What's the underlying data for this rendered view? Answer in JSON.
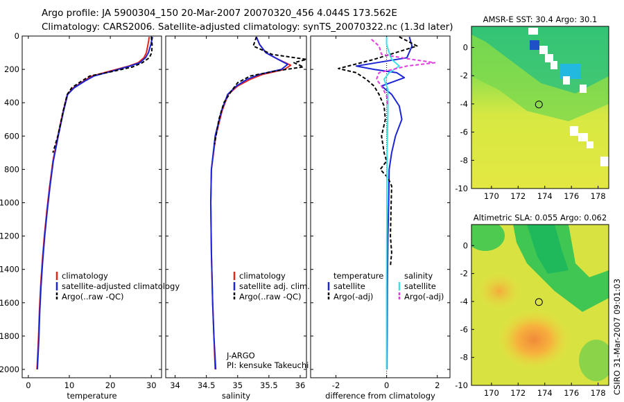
{
  "header": {
    "title_line1": "Argo profile: JA 5900304_150 20-Mar-2007 20070320_456 4.044S 173.562E",
    "title_line2": "Climatology: CARS2006. Satellite-adjusted climatology: synTS_20070322.nc (1.3d later)"
  },
  "side_label": "CSIRO 31-Mar-2007 09:01:03",
  "colors": {
    "red": "#e8231c",
    "blue": "#1b24d6",
    "black": "#000000",
    "cyan": "#3ee0e8",
    "magenta": "#e23be0"
  },
  "chart_data": [
    {
      "id": "temperature",
      "type": "line",
      "xlabel": "temperature",
      "ylabel": "",
      "xlim": [
        -1.5,
        32.5
      ],
      "ylim": [
        0,
        2050
      ],
      "xticks": [
        0,
        10,
        20,
        30
      ],
      "xtick_labels": [
        "0",
        "10",
        "20",
        "30"
      ],
      "yticks": [
        0,
        200,
        400,
        600,
        800,
        1000,
        1200,
        1400,
        1600,
        1800,
        2000
      ],
      "ytick_labels": [
        "0",
        "200",
        "400",
        "600",
        "800",
        "1000",
        "1200",
        "1400",
        "1600",
        "1800",
        "2000"
      ],
      "legend": [
        "climatology",
        "satellite-adjusted climatology",
        "Argo(..raw -QC)"
      ],
      "series": [
        {
          "name": "climatology",
          "color": "red",
          "dash": "",
          "x": [
            29.5,
            29.2,
            28.8,
            28.2,
            26.8,
            24.5,
            20.0,
            15.5,
            13.5,
            11.0,
            9.5,
            8.5,
            7.2,
            6.0,
            5.2,
            4.5,
            3.9,
            3.4,
            3.0,
            2.7,
            2.5,
            2.3,
            2.1
          ],
          "y": [
            5,
            50,
            100,
            130,
            160,
            180,
            210,
            240,
            270,
            310,
            350,
            450,
            600,
            750,
            900,
            1050,
            1200,
            1350,
            1500,
            1650,
            1800,
            1900,
            2000
          ]
        },
        {
          "name": "satellite-adjusted climatology",
          "color": "blue",
          "dash": "",
          "x": [
            30.3,
            29.9,
            29.3,
            28.6,
            27.2,
            24.8,
            20.5,
            16.0,
            13.8,
            11.2,
            9.6,
            8.6,
            7.3,
            6.1,
            5.3,
            4.6,
            4.0,
            3.5,
            3.1,
            2.8,
            2.6,
            2.4,
            2.2
          ],
          "y": [
            5,
            50,
            100,
            130,
            160,
            180,
            210,
            240,
            270,
            310,
            350,
            450,
            600,
            750,
            900,
            1050,
            1200,
            1350,
            1500,
            1650,
            1800,
            1900,
            2000
          ]
        },
        {
          "name": "Argo(..raw -QC)",
          "color": "black",
          "dash": "5,3",
          "x": [
            30.0,
            30.2,
            30.1,
            29.5,
            27.8,
            25.5,
            21.0,
            15.0,
            13.0,
            10.6,
            9.5,
            8.5,
            7.2,
            6.0
          ],
          "y": [
            5,
            50,
            100,
            130,
            160,
            185,
            210,
            240,
            270,
            310,
            350,
            450,
            600,
            700
          ]
        }
      ]
    },
    {
      "id": "salinity",
      "type": "line",
      "xlabel": "salinity",
      "ylabel": "",
      "xlim": [
        33.85,
        36.1
      ],
      "ylim": [
        0,
        2050
      ],
      "xticks": [
        34,
        34.5,
        35,
        35.5,
        36
      ],
      "xtick_labels": [
        "34",
        "34.5",
        "35",
        "35.5",
        "36"
      ],
      "legend": [
        "climatology",
        "satellite adj. clim.",
        "Argo(..raw -QC)"
      ],
      "annotation_line1": "J-ARGO",
      "annotation_line2": "PI: kensuke Takeuchi",
      "series": [
        {
          "name": "climatology",
          "color": "red",
          "dash": "",
          "x": [
            35.3,
            35.35,
            35.45,
            35.65,
            35.85,
            35.75,
            35.4,
            35.2,
            35.0,
            34.85,
            34.75,
            34.65,
            34.58,
            34.57,
            34.58,
            34.6,
            34.62,
            34.64
          ],
          "y": [
            5,
            50,
            100,
            140,
            175,
            200,
            230,
            260,
            300,
            350,
            450,
            600,
            800,
            1000,
            1300,
            1600,
            1800,
            2000
          ]
        },
        {
          "name": "satellite adj. clim.",
          "color": "blue",
          "dash": "",
          "x": [
            35.3,
            35.35,
            35.45,
            35.65,
            35.8,
            35.7,
            35.35,
            35.15,
            34.98,
            34.84,
            34.74,
            34.64,
            34.58,
            34.57,
            34.58,
            34.6,
            34.62,
            34.65
          ],
          "y": [
            5,
            50,
            100,
            140,
            170,
            200,
            230,
            260,
            300,
            350,
            450,
            600,
            800,
            1000,
            1300,
            1600,
            1800,
            2000
          ]
        },
        {
          "name": "Argo(..raw -QC)",
          "color": "black",
          "dash": "5,3",
          "x": [
            35.3,
            35.25,
            35.55,
            36.1,
            35.9,
            36.05,
            35.6,
            35.2,
            35.0,
            34.9,
            34.78,
            34.7,
            34.63
          ],
          "y": [
            5,
            60,
            110,
            140,
            160,
            185,
            210,
            240,
            280,
            330,
            400,
            500,
            650
          ]
        }
      ]
    },
    {
      "id": "difference",
      "type": "line",
      "xlabel": "difference from climatology",
      "ylabel": "",
      "xlim": [
        -3,
        2.5
      ],
      "ylim": [
        0,
        2050
      ],
      "xticks": [
        -2,
        0,
        2
      ],
      "xtick_labels": [
        "-2",
        "0",
        "2"
      ],
      "legend_left_title": "temperature",
      "legend_right_title": "salinity",
      "legend": [
        "satellite",
        "Argo(-adj)",
        "satellite",
        "Argo(-adj)"
      ],
      "series": [
        {
          "name": "temperature satellite",
          "color": "blue",
          "dash": "",
          "x": [
            0.9,
            1.0,
            0.8,
            -1.2,
            -0.5,
            0.4,
            0.7,
            -0.2,
            0.2,
            0.5,
            0.6,
            0.35,
            0.2,
            0.1,
            0.08,
            0.05,
            0.03,
            0.02,
            0.01
          ],
          "y": [
            5,
            60,
            130,
            180,
            200,
            220,
            250,
            300,
            350,
            420,
            500,
            600,
            700,
            800,
            1000,
            1200,
            1500,
            1800,
            2000
          ]
        },
        {
          "name": "temperature Argo(-adj)",
          "color": "black",
          "dash": "5,3",
          "x": [
            0.5,
            1.2,
            -0.5,
            -1.9,
            -1.2,
            -0.8,
            -0.5,
            -0.3,
            -0.1,
            -0.05,
            -0.2,
            -0.1,
            0.0,
            -0.25,
            0.05,
            0.2,
            0.18,
            0.15,
            0.2,
            0.15
          ],
          "y": [
            5,
            60,
            140,
            195,
            220,
            260,
            300,
            350,
            420,
            500,
            600,
            700,
            750,
            800,
            850,
            900,
            1000,
            1200,
            1300,
            1380
          ]
        },
        {
          "name": "salinity satellite",
          "color": "cyan",
          "dash": "",
          "x": [
            0.0,
            0.0,
            0.1,
            0.2,
            0.5,
            0.1,
            -0.1,
            0.05,
            0.05,
            0.02,
            0.01,
            0.0,
            0.0
          ],
          "y": [
            5,
            50,
            100,
            140,
            180,
            220,
            260,
            320,
            450,
            700,
            1000,
            1500,
            2000
          ]
        },
        {
          "name": "salinity Argo(-adj)",
          "color": "magenta",
          "dash": "5,3",
          "x": [
            -0.6,
            -0.3,
            -0.2,
            1.0,
            1.9,
            0.8,
            -0.3,
            -0.4,
            -0.2,
            0.0,
            0.05
          ],
          "y": [
            20,
            60,
            110,
            140,
            160,
            180,
            220,
            260,
            300,
            360,
            420
          ]
        }
      ]
    },
    {
      "id": "sst_map",
      "type": "heatmap",
      "title": "AMSR-E SST: 30.4  Argo: 30.1",
      "xlim": [
        168.5,
        178.8
      ],
      "ylim": [
        -10,
        1.5
      ],
      "xticks": [
        170,
        172,
        174,
        176,
        178
      ],
      "xtick_labels": [
        "170",
        "172",
        "174",
        "176",
        "178"
      ],
      "yticks": [
        0,
        -2,
        -4,
        -6,
        -8,
        -10
      ],
      "ytick_labels": [
        "0",
        "-2",
        "-4",
        "-6",
        "-8",
        "-10"
      ],
      "marker": {
        "lon": 173.56,
        "lat": -4.04
      }
    },
    {
      "id": "sla_map",
      "type": "heatmap",
      "title": "Altimetric SLA: 0.055  Argo: 0.062",
      "xlim": [
        168.5,
        178.8
      ],
      "ylim": [
        -10,
        1.5
      ],
      "xticks": [
        170,
        172,
        174,
        176,
        178
      ],
      "xtick_labels": [
        "170",
        "172",
        "174",
        "176",
        "178"
      ],
      "yticks": [
        0,
        -2,
        -4,
        -6,
        -8,
        -10
      ],
      "ytick_labels": [
        "0",
        "-2",
        "-4",
        "-6",
        "-8",
        "-10"
      ],
      "marker": {
        "lon": 173.56,
        "lat": -4.04
      }
    }
  ]
}
